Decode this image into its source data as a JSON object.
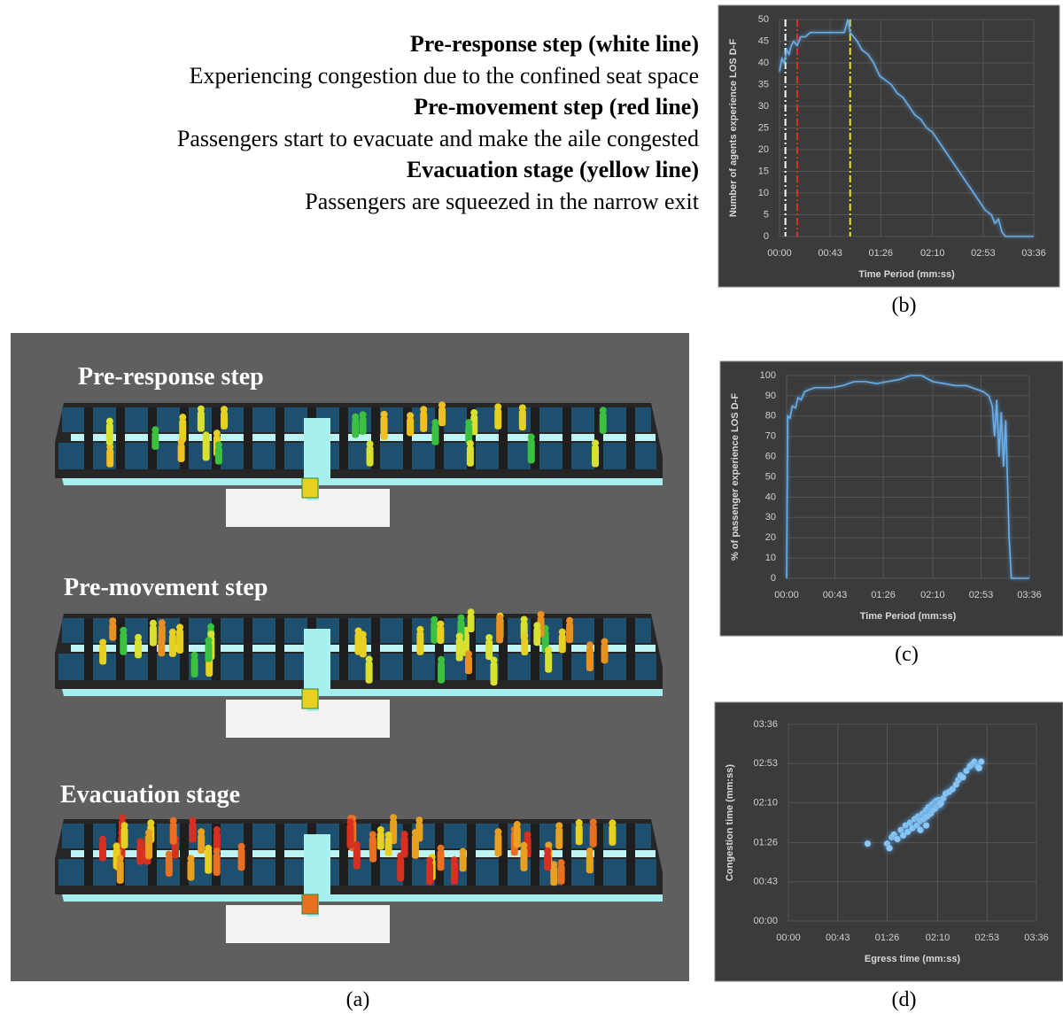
{
  "notes": [
    {
      "heading": "Pre-response step (white line)",
      "text": "Experiencing congestion due to the confined seat space"
    },
    {
      "heading": "Pre-movement step (red line)",
      "text": "Passengers start to evacuate and make the aile congested"
    },
    {
      "heading": "Evacuation stage (yellow line)",
      "text": "Passengers are squeezed in the narrow exit"
    }
  ],
  "simulation": {
    "steps": [
      "Pre-response step",
      "Pre-movement step",
      "Evacuation stage"
    ],
    "caption": "(a)"
  },
  "chart_data": [
    {
      "type": "line",
      "caption": "(b)",
      "xlabel": "Time Period (mm:ss)",
      "ylabel": "Number of agents experience LOS D-F",
      "color": "#6aaee8",
      "grid": true,
      "xlim": [
        0,
        216
      ],
      "xticks": [
        {
          "value": 0,
          "label": "00:00"
        },
        {
          "value": 43,
          "label": "00:43"
        },
        {
          "value": 86,
          "label": "01:26"
        },
        {
          "value": 130,
          "label": "02:10"
        },
        {
          "value": 173,
          "label": "02:53"
        },
        {
          "value": 216,
          "label": "03:36"
        }
      ],
      "ylim": [
        0,
        50
      ],
      "yticks": [
        0,
        5,
        10,
        15,
        20,
        25,
        30,
        35,
        40,
        45,
        50
      ],
      "vlines": [
        {
          "value": 5,
          "color": "#ffffff"
        },
        {
          "value": 15,
          "color": "#e03030"
        },
        {
          "value": 60,
          "color": "#f2e600"
        }
      ],
      "x": [
        0,
        2,
        4,
        6,
        8,
        10,
        12,
        15,
        18,
        22,
        26,
        30,
        35,
        40,
        45,
        50,
        55,
        58,
        60,
        63,
        66,
        70,
        75,
        80,
        85,
        90,
        95,
        100,
        105,
        110,
        115,
        120,
        125,
        130,
        135,
        140,
        145,
        150,
        155,
        160,
        165,
        170,
        175,
        180,
        183,
        186,
        189,
        192,
        196,
        200,
        205,
        210,
        216
      ],
      "values": [
        38,
        41,
        40,
        43,
        42,
        44,
        45,
        44,
        46,
        46,
        47,
        47,
        47,
        47,
        47,
        47,
        47,
        50,
        47,
        46,
        45,
        43,
        42,
        40,
        37,
        36,
        35,
        33,
        32,
        30,
        28,
        27,
        25,
        24,
        22,
        20,
        18,
        16,
        14,
        12,
        10,
        8,
        6,
        5,
        3,
        4,
        1,
        0,
        0,
        0,
        0,
        0,
        0
      ]
    },
    {
      "type": "line",
      "caption": "(c)",
      "xlabel": "Time Period (mm:ss)",
      "ylabel": "% of passenger experience LOS D-F",
      "color": "#6aaee8",
      "grid": true,
      "xlim": [
        0,
        216
      ],
      "xticks": [
        {
          "value": 0,
          "label": "00:00"
        },
        {
          "value": 43,
          "label": "00:43"
        },
        {
          "value": 86,
          "label": "01:26"
        },
        {
          "value": 130,
          "label": "02:10"
        },
        {
          "value": 173,
          "label": "02:53"
        },
        {
          "value": 216,
          "label": "03:36"
        }
      ],
      "ylim": [
        0,
        100
      ],
      "yticks": [
        0,
        10,
        20,
        30,
        40,
        50,
        60,
        70,
        80,
        90,
        100
      ],
      "x": [
        0,
        1,
        3,
        5,
        8,
        10,
        13,
        16,
        20,
        25,
        30,
        40,
        50,
        60,
        70,
        80,
        90,
        100,
        110,
        120,
        130,
        140,
        150,
        160,
        170,
        175,
        180,
        183,
        185,
        187,
        189,
        191,
        193,
        195,
        197,
        198,
        200,
        205,
        210,
        216
      ],
      "values": [
        0,
        80,
        79,
        85,
        84,
        89,
        88,
        92,
        93,
        94,
        94,
        94,
        95,
        97,
        97,
        96,
        97,
        98,
        100,
        100,
        97,
        96,
        95,
        95,
        93,
        92,
        90,
        85,
        70,
        88,
        60,
        82,
        55,
        78,
        40,
        20,
        0,
        0,
        0,
        0
      ]
    },
    {
      "type": "scatter",
      "caption": "(d)",
      "xlabel": "Egress time (mm:ss)",
      "ylabel": "Congestion time (mm:ss)",
      "color": "#8cc8f5",
      "grid": true,
      "xlim": [
        0,
        216
      ],
      "xticks": [
        {
          "value": 0,
          "label": "00:00"
        },
        {
          "value": 43,
          "label": "00:43"
        },
        {
          "value": 86,
          "label": "01:26"
        },
        {
          "value": 130,
          "label": "02:10"
        },
        {
          "value": 173,
          "label": "02:53"
        },
        {
          "value": 216,
          "label": "03:36"
        }
      ],
      "ylim": [
        0,
        216
      ],
      "yticks": [
        {
          "value": 0,
          "label": "00:00"
        },
        {
          "value": 43,
          "label": "00:43"
        },
        {
          "value": 86,
          "label": "01:26"
        },
        {
          "value": 130,
          "label": "02:10"
        },
        {
          "value": 173,
          "label": "02:53"
        },
        {
          "value": 216,
          "label": "03:36"
        }
      ],
      "x": [
        69,
        86,
        88,
        90,
        92,
        95,
        98,
        100,
        102,
        104,
        106,
        108,
        110,
        112,
        113,
        115,
        117,
        118,
        120,
        121,
        122,
        124,
        125,
        126,
        127,
        128,
        129,
        130,
        131,
        132,
        133,
        135,
        137,
        140,
        143,
        146,
        148,
        150,
        152,
        155,
        158,
        160,
        162,
        165,
        168,
        166,
        115,
        120
      ],
      "values": [
        85,
        85,
        80,
        92,
        95,
        90,
        100,
        94,
        105,
        98,
        108,
        102,
        112,
        105,
        115,
        110,
        118,
        112,
        122,
        115,
        125,
        118,
        128,
        122,
        130,
        124,
        132,
        127,
        133,
        128,
        130,
        135,
        140,
        142,
        145,
        150,
        155,
        160,
        158,
        165,
        170,
        172,
        175,
        170,
        175,
        168,
        100,
        105
      ]
    }
  ]
}
